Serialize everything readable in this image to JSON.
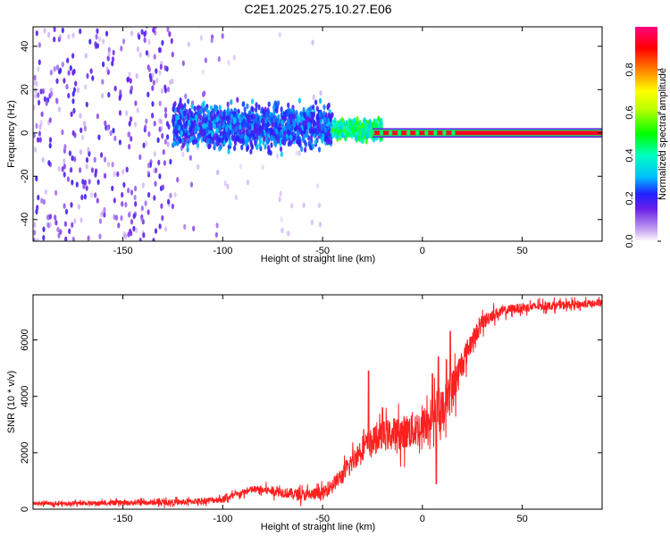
{
  "title": "C2E1.2025.275.10.27.E06",
  "chart_data": [
    {
      "type": "heatmap",
      "xlabel": "Height of straight line (km)",
      "ylabel": "Frequency (Hz)",
      "xlim": [
        -195,
        90
      ],
      "ylim": [
        -50,
        49
      ],
      "xticks": [
        -150,
        -100,
        -50,
        0,
        50
      ],
      "yticks": [
        -40,
        -20,
        0,
        20,
        40
      ],
      "colorbar": {
        "label": "Normalized spectral amplitude",
        "range": [
          0,
          1
        ],
        "ticks": [
          0.0,
          0.2,
          0.4,
          0.6,
          0.8
        ],
        "tick_labels": [
          "0.0",
          "0.2",
          "0.4",
          "0.6",
          "0.8"
        ],
        "stops": [
          {
            "v": 0.0,
            "color": "#ffffff"
          },
          {
            "v": 0.05,
            "color": "#c8a8f0"
          },
          {
            "v": 0.15,
            "color": "#6a20e8"
          },
          {
            "v": 0.22,
            "color": "#2020ff"
          },
          {
            "v": 0.3,
            "color": "#00c0ff"
          },
          {
            "v": 0.4,
            "color": "#00ffc0"
          },
          {
            "v": 0.5,
            "color": "#00ff00"
          },
          {
            "v": 0.62,
            "color": "#c0ff00"
          },
          {
            "v": 0.7,
            "color": "#ffff00"
          },
          {
            "v": 0.8,
            "color": "#ff8000"
          },
          {
            "v": 0.9,
            "color": "#ff0000"
          },
          {
            "v": 1.0,
            "color": "#ff0080"
          }
        ]
      },
      "regions": [
        {
          "x_range": [
            -195,
            -125
          ],
          "freq_spread": 50,
          "amplitude": [
            0.05,
            0.2
          ],
          "density": 0.55
        },
        {
          "x_range": [
            -125,
            -100
          ],
          "freq_spread": 50,
          "amplitude": [
            0.03,
            0.12
          ],
          "density": 0.3
        },
        {
          "x_range": [
            -100,
            -50
          ],
          "freq_spread": 50,
          "amplitude": [
            0.02,
            0.07
          ],
          "density": 0.2
        },
        {
          "x_range": [
            -125,
            -45
          ],
          "freq_spread": 14,
          "amplitude": [
            0.15,
            0.32
          ],
          "density": 0.9
        },
        {
          "x_range": [
            -45,
            -20
          ],
          "freq_spread": 6,
          "amplitude": [
            0.3,
            0.55
          ],
          "density": 0.9
        },
        {
          "x_range": [
            -25,
            90
          ],
          "freq_spread": 1.5,
          "amplitude": [
            0.9,
            1.0
          ],
          "density": 1.0
        }
      ]
    },
    {
      "type": "line",
      "xlabel": "Height of straight line (km)",
      "ylabel": "SNR (10 * v/v)",
      "xlim": [
        -195,
        90
      ],
      "ylim": [
        0,
        7600
      ],
      "xticks": [
        -150,
        -100,
        -50,
        0,
        50
      ],
      "yticks": [
        0,
        2000,
        4000,
        6000
      ],
      "color": "#ff2020",
      "trend": [
        {
          "x": -195,
          "y": 200
        },
        {
          "x": -150,
          "y": 220
        },
        {
          "x": -120,
          "y": 250
        },
        {
          "x": -100,
          "y": 350
        },
        {
          "x": -85,
          "y": 700
        },
        {
          "x": -75,
          "y": 650
        },
        {
          "x": -60,
          "y": 500
        },
        {
          "x": -50,
          "y": 550
        },
        {
          "x": -40,
          "y": 1200
        },
        {
          "x": -30,
          "y": 2200
        },
        {
          "x": -20,
          "y": 2600
        },
        {
          "x": -10,
          "y": 2700
        },
        {
          "x": 0,
          "y": 2900
        },
        {
          "x": 5,
          "y": 3300
        },
        {
          "x": 10,
          "y": 3500
        },
        {
          "x": 15,
          "y": 4200
        },
        {
          "x": 20,
          "y": 5200
        },
        {
          "x": 25,
          "y": 6000
        },
        {
          "x": 30,
          "y": 6600
        },
        {
          "x": 35,
          "y": 6900
        },
        {
          "x": 45,
          "y": 7100
        },
        {
          "x": 60,
          "y": 7200
        },
        {
          "x": 75,
          "y": 7250
        },
        {
          "x": 90,
          "y": 7300
        }
      ],
      "noise_amplitude": [
        {
          "x": -195,
          "a": 120
        },
        {
          "x": -90,
          "a": 250
        },
        {
          "x": -45,
          "a": 500
        },
        {
          "x": -30,
          "a": 900
        },
        {
          "x": 0,
          "a": 1400
        },
        {
          "x": 15,
          "a": 1500
        },
        {
          "x": 25,
          "a": 700
        },
        {
          "x": 40,
          "a": 350
        },
        {
          "x": 90,
          "a": 250
        }
      ],
      "spikes": [
        {
          "x": -27,
          "y": 4900
        },
        {
          "x": -20,
          "y": 3600
        },
        {
          "x": 5,
          "y": 4800
        },
        {
          "x": 8,
          "y": 5400
        },
        {
          "x": 12,
          "y": 5300
        },
        {
          "x": 14,
          "y": 6300
        },
        {
          "x": 7,
          "y": 900
        }
      ]
    }
  ]
}
